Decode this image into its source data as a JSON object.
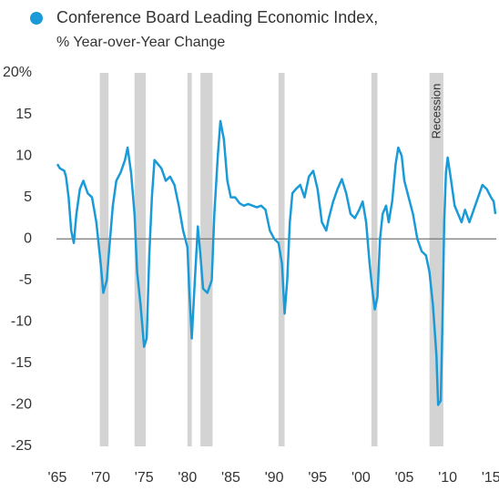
{
  "chart_data": {
    "type": "line",
    "subtitle": "% Year-over-Year Change",
    "series": [
      {
        "name": "Conference Board Leading Economic Index,",
        "color": "#1a9ad6",
        "x": [
          1965.0,
          1965.3,
          1965.8,
          1966.0,
          1966.3,
          1966.6,
          1966.9,
          1967.2,
          1967.6,
          1968.0,
          1968.5,
          1969.0,
          1969.5,
          1970.0,
          1970.3,
          1970.7,
          1971.0,
          1971.4,
          1971.8,
          1972.3,
          1972.8,
          1973.1,
          1973.5,
          1973.9,
          1974.2,
          1974.6,
          1975.0,
          1975.3,
          1975.6,
          1975.9,
          1976.2,
          1976.6,
          1977.0,
          1977.5,
          1978.0,
          1978.5,
          1979.0,
          1979.5,
          1980.0,
          1980.2,
          1980.5,
          1980.8,
          1981.2,
          1981.5,
          1981.8,
          1982.3,
          1982.8,
          1983.1,
          1983.5,
          1983.8,
          1984.2,
          1984.6,
          1985.0,
          1985.5,
          1986.0,
          1986.5,
          1987.0,
          1987.5,
          1988.0,
          1988.5,
          1989.0,
          1989.5,
          1990.0,
          1990.5,
          1990.9,
          1991.2,
          1991.5,
          1991.8,
          1992.1,
          1992.5,
          1993.0,
          1993.5,
          1994.0,
          1994.5,
          1995.0,
          1995.5,
          1996.0,
          1996.3,
          1996.8,
          1997.3,
          1997.8,
          1998.3,
          1998.8,
          1999.3,
          1999.8,
          2000.2,
          2000.6,
          2001.0,
          2001.3,
          2001.6,
          2001.9,
          2002.2,
          2002.5,
          2002.9,
          2003.2,
          2003.6,
          2004.0,
          2004.3,
          2004.7,
          2005.0,
          2005.5,
          2006.0,
          2006.5,
          2007.0,
          2007.5,
          2007.9,
          2008.3,
          2008.7,
          2008.9,
          2009.2,
          2009.4,
          2009.6,
          2009.8,
          2010.0,
          2010.4,
          2010.8,
          2011.2,
          2011.6,
          2012.0,
          2012.5,
          2013.0,
          2013.5,
          2014.0,
          2014.5,
          2015.0,
          2015.3,
          2015.5
        ],
        "values": [
          9,
          8.5,
          8.2,
          7.5,
          5,
          1,
          -0.5,
          3,
          6,
          7,
          5.5,
          5,
          2,
          -3,
          -6.5,
          -5,
          -1,
          4,
          7,
          8,
          9.5,
          11,
          8,
          3,
          -4,
          -8,
          -13,
          -12,
          -2,
          5,
          9.5,
          9,
          8.5,
          7,
          7.5,
          6.5,
          4,
          1,
          -1,
          -6,
          -12,
          -6,
          1.5,
          -2,
          -6,
          -6.5,
          -5,
          3,
          10,
          14.2,
          12,
          7,
          5,
          5,
          4.3,
          4,
          4.2,
          4,
          3.8,
          4,
          3.5,
          1,
          0,
          -0.5,
          -3,
          -9,
          -5,
          2,
          5.5,
          6,
          6.5,
          5,
          7.5,
          8.2,
          6,
          2,
          1,
          2.5,
          4.5,
          6,
          7.2,
          5.5,
          3,
          2.5,
          3.5,
          4.5,
          2,
          -3,
          -6,
          -8.5,
          -7,
          0,
          3,
          4,
          2,
          4.5,
          9,
          11,
          10,
          7,
          5,
          3,
          0,
          -1.5,
          -2,
          -4,
          -8,
          -14,
          -20,
          -19.5,
          -10,
          2,
          8,
          9.8,
          7,
          4,
          3,
          2,
          3.5,
          2,
          3.5,
          5,
          6.5,
          6,
          5,
          4.5,
          3
        ]
      }
    ],
    "recessions": [
      [
        1969.9,
        1970.9
      ],
      [
        1973.9,
        1975.2
      ],
      [
        1980.0,
        1980.5
      ],
      [
        1981.5,
        1982.9
      ],
      [
        1990.5,
        1991.2
      ],
      [
        2001.2,
        2001.9
      ],
      [
        2007.9,
        2009.5
      ]
    ],
    "recession_label": "Recession",
    "xlim": [
      1964.9,
      2015.6
    ],
    "xticks": [
      {
        "value": 1965,
        "label": "'65"
      },
      {
        "value": 1970,
        "label": "'70"
      },
      {
        "value": 1975,
        "label": "'75"
      },
      {
        "value": 1980,
        "label": "'80"
      },
      {
        "value": 1985,
        "label": "'85"
      },
      {
        "value": 1990,
        "label": "'90"
      },
      {
        "value": 1995,
        "label": "'95"
      },
      {
        "value": 2000,
        "label": "'00"
      },
      {
        "value": 2005,
        "label": "'05"
      },
      {
        "value": 2010,
        "label": "'10"
      },
      {
        "value": 2015,
        "label": "'15"
      }
    ],
    "ylim": [
      -25,
      20
    ],
    "yticks": [
      {
        "value": 20,
        "label": "20%"
      },
      15,
      10,
      5,
      0,
      -5,
      -10,
      -15,
      -20,
      -25
    ],
    "zero_line": true
  }
}
